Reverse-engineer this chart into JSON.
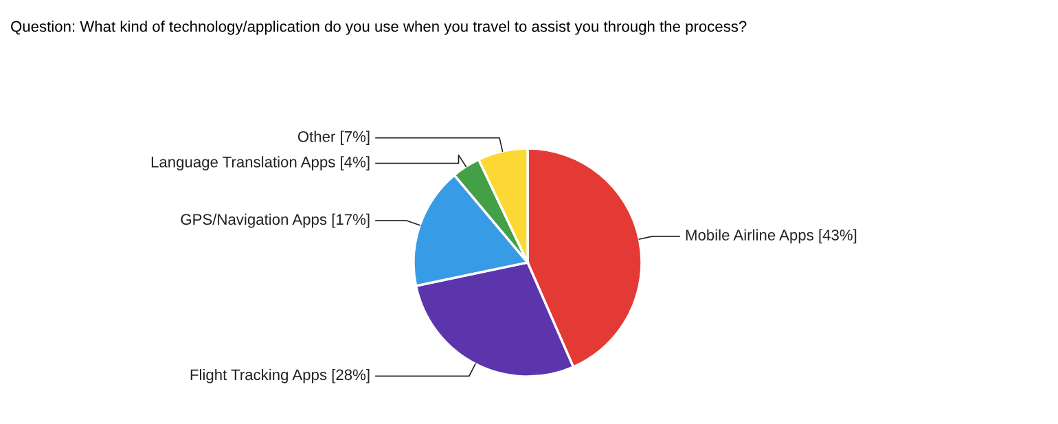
{
  "chart_data": {
    "type": "pie",
    "title": "Question: What kind of technology/application do you use when you travel to assist you through the process?",
    "categories": [
      "Mobile Airline Apps",
      "Flight Tracking Apps",
      "GPS/Navigation Apps",
      "Language Translation Apps",
      "Other"
    ],
    "values": [
      43,
      28,
      17,
      4,
      7
    ],
    "value_labels": [
      "[43%]",
      "[28%]",
      "[17%]",
      "[4%]",
      "[7%]"
    ],
    "colors": [
      "#e43a35",
      "#5c35ad",
      "#389be6",
      "#43a047",
      "#fcd835"
    ],
    "legend": false
  }
}
